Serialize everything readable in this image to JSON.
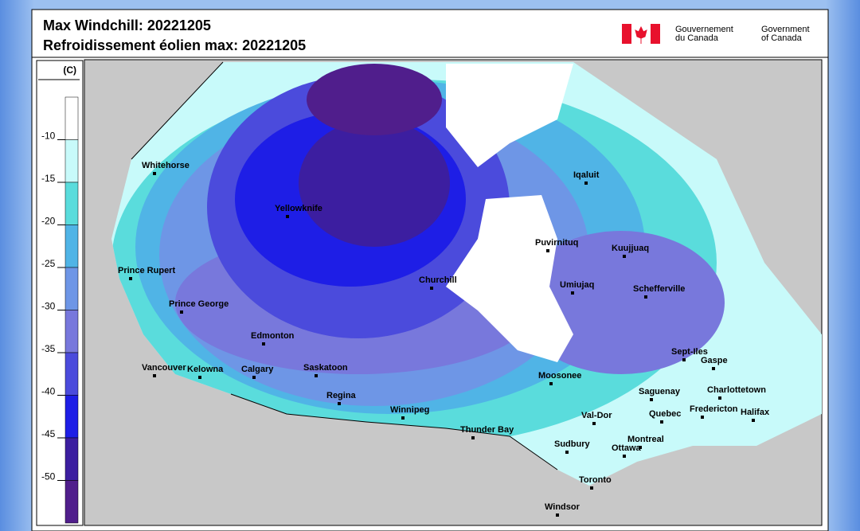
{
  "header": {
    "title": "Max Windchill: 20221205",
    "subtitle": "Refroidissement éolien max: 20221205",
    "gov_fr": [
      "Gouvernement",
      "du Canada"
    ],
    "gov_en": [
      "Government",
      "of Canada"
    ]
  },
  "legend": {
    "unit": "(C)",
    "ticks": [
      -10,
      -15,
      -20,
      -25,
      -30,
      -35,
      -40,
      -45,
      -50
    ],
    "colors": [
      "#ffffff",
      "#c8fafa",
      "#5adcdc",
      "#50b4e6",
      "#6e96e6",
      "#7878dc",
      "#4b4bdc",
      "#1e1ee6",
      "#3c1ea0",
      "#501e8c"
    ]
  },
  "cities": [
    "Whitehorse",
    "Yellowknife",
    "Iqaluit",
    "Puvirnituq",
    "Kuujjuaq",
    "Prince Rupert",
    "Prince George",
    "Churchill",
    "Umiujaq",
    "Schefferville",
    "Edmonton",
    "Sept-Iles",
    "Gaspe",
    "Vancouver",
    "Kelowna",
    "Calgary",
    "Saskatoon",
    "Moosonee",
    "Saguenay",
    "Charlottetown",
    "Regina",
    "Fredericton",
    "Halifax",
    "Winnipeg",
    "Val-Dor",
    "Quebec",
    "Thunder Bay",
    "Montreal",
    "Sudbury",
    "Ottawa",
    "Toronto",
    "Windsor"
  ]
}
